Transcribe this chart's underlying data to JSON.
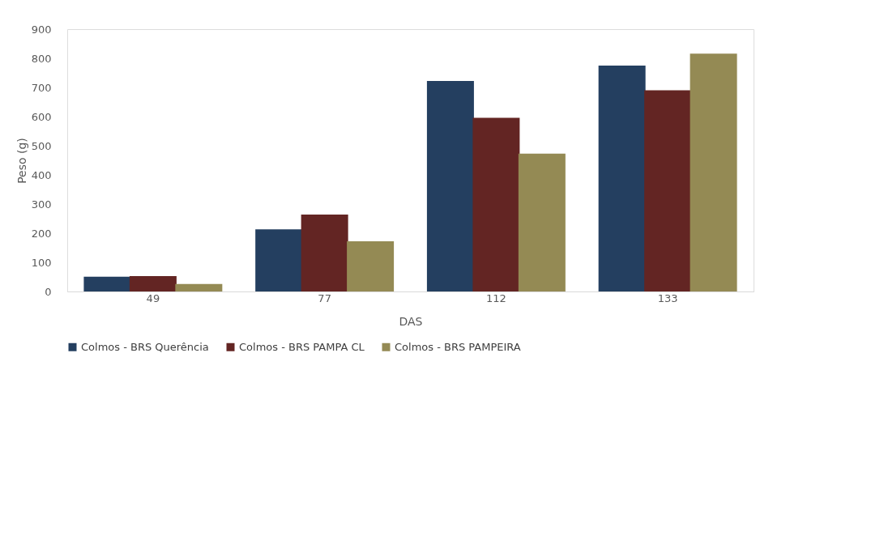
{
  "chart_data": {
    "type": "bar",
    "xlabel": "DAS",
    "ylabel": "Peso (g)",
    "categories": [
      "49",
      "77",
      "112",
      "133"
    ],
    "series": [
      {
        "name": "Colmos - BRS Querência",
        "color": "#243f60",
        "values": [
          51,
          213,
          722,
          775
        ]
      },
      {
        "name": "Colmos - BRS PAMPA CL",
        "color": "#632523",
        "values": [
          53,
          264,
          596,
          690
        ]
      },
      {
        "name": "Colmos - BRS PAMPEIRA",
        "color": "#948a54",
        "values": [
          26,
          172,
          473,
          816
        ]
      }
    ],
    "ylim": [
      0,
      900
    ],
    "yticks": [
      0,
      100,
      200,
      300,
      400,
      500,
      600,
      700,
      800,
      900
    ],
    "grid": false,
    "legend": "bottom"
  }
}
